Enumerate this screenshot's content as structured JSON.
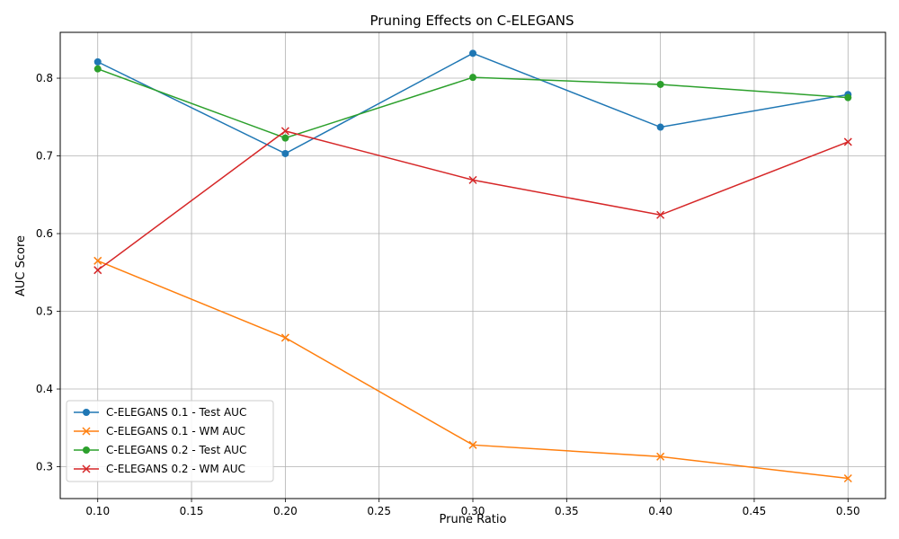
{
  "chart_data": {
    "type": "line",
    "title": "Pruning Effects on C-ELEGANS",
    "xlabel": "Prune Ratio",
    "ylabel": "AUC Score",
    "x": [
      0.1,
      0.2,
      0.3,
      0.4,
      0.5
    ],
    "xlim": [
      0.08,
      0.52
    ],
    "ylim": [
      0.259,
      0.859
    ],
    "xticks": [
      "0.10",
      "0.15",
      "0.20",
      "0.25",
      "0.30",
      "0.35",
      "0.40",
      "0.45",
      "0.50"
    ],
    "yticks": [
      "0.3",
      "0.4",
      "0.5",
      "0.6",
      "0.7",
      "0.8"
    ],
    "grid": true,
    "legend_position": "lower-left",
    "series": [
      {
        "name": "C-ELEGANS 0.1 - Test AUC",
        "color": "#1f77b4",
        "marker": "circle",
        "values": [
          0.821,
          0.703,
          0.832,
          0.737,
          0.779
        ]
      },
      {
        "name": "C-ELEGANS 0.1 - WM AUC",
        "color": "#ff7f0e",
        "marker": "x",
        "values": [
          0.565,
          0.466,
          0.328,
          0.313,
          0.285
        ]
      },
      {
        "name": "C-ELEGANS 0.2 - Test AUC",
        "color": "#2ca02c",
        "marker": "circle",
        "values": [
          0.812,
          0.723,
          0.801,
          0.792,
          0.775
        ]
      },
      {
        "name": "C-ELEGANS 0.2 - WM AUC",
        "color": "#d62728",
        "marker": "x",
        "values": [
          0.553,
          0.732,
          0.669,
          0.624,
          0.718
        ]
      }
    ]
  }
}
